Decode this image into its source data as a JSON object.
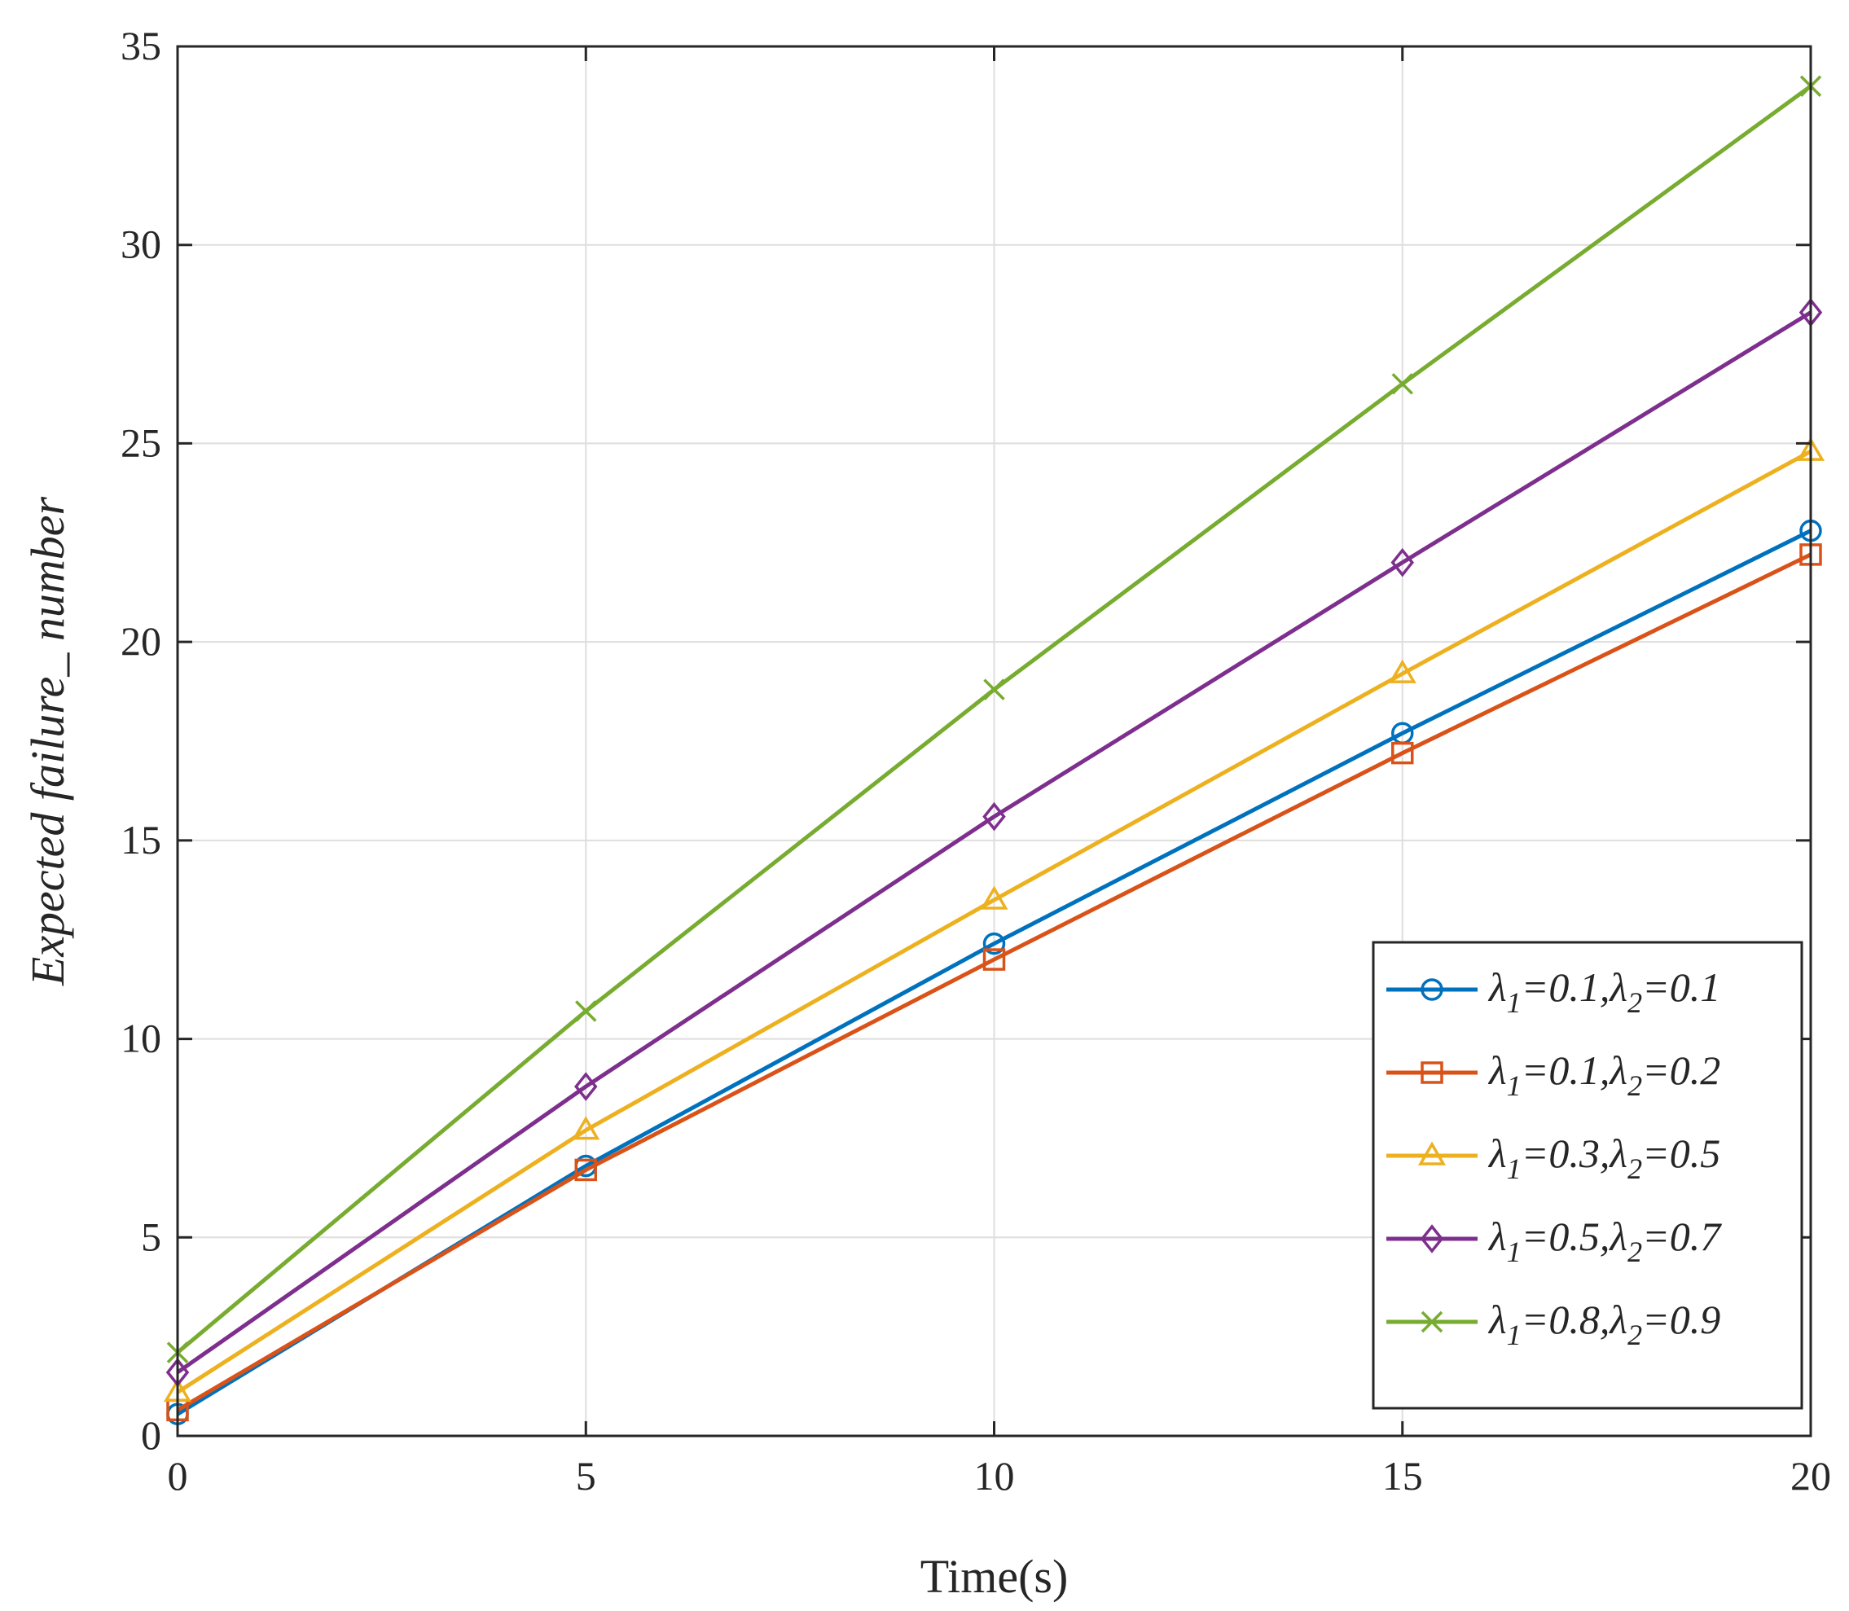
{
  "chart_data": {
    "type": "line",
    "title": "",
    "xlabel": "Time(s)",
    "ylabel": "Expected failure_ number",
    "xlim": [
      0,
      20
    ],
    "ylim": [
      0,
      35
    ],
    "xticks": [
      0,
      5,
      10,
      15,
      20
    ],
    "yticks": [
      0,
      5,
      10,
      15,
      20,
      25,
      30,
      35
    ],
    "grid": true,
    "legend_position": "bottom-right",
    "x": [
      0,
      5,
      10,
      15,
      20
    ],
    "series": [
      {
        "name": "λ1=0.1,λ2=0.1",
        "lambda1": "0.1",
        "lambda2": "0.1",
        "color": "#0072BD",
        "marker": "circle",
        "values": [
          0.55,
          6.8,
          12.4,
          17.7,
          22.8
        ]
      },
      {
        "name": "λ1=0.1,λ2=0.2",
        "lambda1": "0.1",
        "lambda2": "0.2",
        "color": "#D95319",
        "marker": "square",
        "values": [
          0.65,
          6.7,
          12.0,
          17.2,
          22.2
        ]
      },
      {
        "name": "λ1=0.3,λ2=0.5",
        "lambda1": "0.3",
        "lambda2": "0.5",
        "color": "#EDB120",
        "marker": "triangle",
        "values": [
          1.1,
          7.7,
          13.5,
          19.2,
          24.8
        ]
      },
      {
        "name": "λ1=0.5,λ2=0.7",
        "lambda1": "0.5",
        "lambda2": "0.7",
        "color": "#7E2F8E",
        "marker": "diamond",
        "values": [
          1.6,
          8.8,
          15.6,
          22.0,
          28.3
        ]
      },
      {
        "name": "λ1=0.8,λ2=0.9",
        "lambda1": "0.8",
        "lambda2": "0.9",
        "color": "#77AC30",
        "marker": "x",
        "values": [
          2.1,
          10.7,
          18.8,
          26.5,
          34.0
        ]
      }
    ]
  }
}
